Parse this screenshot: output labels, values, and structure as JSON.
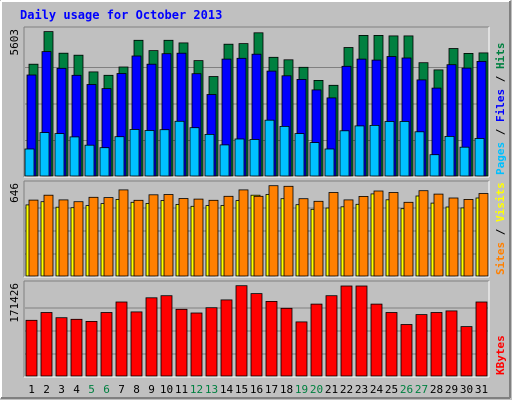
{
  "chart_data": {
    "type": "bar",
    "title": "Daily usage for October 2013",
    "categories": [
      "1",
      "2",
      "3",
      "4",
      "5",
      "6",
      "7",
      "8",
      "9",
      "10",
      "11",
      "12",
      "13",
      "14",
      "15",
      "16",
      "17",
      "18",
      "19",
      "20",
      "21",
      "22",
      "23",
      "24",
      "25",
      "26",
      "27",
      "28",
      "29",
      "30",
      "31"
    ],
    "weekend_days": [
      5,
      6,
      12,
      13,
      19,
      20,
      26,
      27
    ],
    "grid": true,
    "panels": [
      {
        "name": "hits-files-pages",
        "max_label": "5603",
        "ymax": 5603,
        "ylabel_parts": [
          {
            "text": "Pages",
            "color": "#00c0ff"
          },
          {
            "text": " / ",
            "color": "#000000"
          },
          {
            "text": "Files",
            "color": "#0000ff"
          },
          {
            "text": " / ",
            "color": "#000000"
          },
          {
            "text": "Hits",
            "color": "#008040"
          }
        ],
        "series": [
          {
            "name": "Hits",
            "color": "#008040",
            "values": [
              4350,
              5620,
              4780,
              4700,
              4050,
              3920,
              4240,
              5280,
              4880,
              5280,
              5180,
              4490,
              3870,
              5130,
              5150,
              5570,
              4620,
              4520,
              4230,
              3720,
              3530,
              5000,
              5470,
              5470,
              5450,
              5450,
              4410,
              4130,
              4960,
              4770,
              4790
            ]
          },
          {
            "name": "Files",
            "color": "#0000ff",
            "values": [
              3930,
              4840,
              4190,
              3920,
              3560,
              3400,
              3990,
              4670,
              4350,
              4760,
              4780,
              3980,
              3170,
              4550,
              4580,
              4740,
              4080,
              3900,
              3760,
              3350,
              3040,
              4270,
              4550,
              4510,
              4650,
              4590,
              3740,
              3420,
              4330,
              4200,
              4460
            ]
          },
          {
            "name": "Pages",
            "color": "#00c0ff",
            "values": [
              1050,
              1690,
              1650,
              1520,
              1200,
              1100,
              1530,
              1810,
              1770,
              1800,
              2130,
              1880,
              1620,
              1210,
              1440,
              1420,
              2170,
              1930,
              1650,
              1300,
              1050,
              1760,
              1950,
              1970,
              2120,
              2120,
              1720,
              830,
              1540,
              1120,
              1460
            ]
          }
        ]
      },
      {
        "name": "visits-sites",
        "max_label": "646",
        "ymax": 646,
        "ylabel_parts": [
          {
            "text": "Sites",
            "color": "#ff8000"
          },
          {
            "text": " / ",
            "color": "#000000"
          },
          {
            "text": "Visits",
            "color": "#ffff00"
          }
        ],
        "series": [
          {
            "name": "Visits",
            "color": "#ffff00",
            "values": [
              510,
              533,
              494,
              490,
              505,
              520,
              550,
              529,
              521,
              542,
              514,
              500,
              505,
              506,
              541,
              580,
              585,
              555,
              512,
              479,
              488,
              497,
              515,
              589,
              547,
              483,
              574,
              523,
              495,
              489,
              560
            ]
          },
          {
            "name": "Sites",
            "color": "#ff8000",
            "values": [
              545,
              580,
              546,
              533,
              565,
              563,
              618,
              543,
              583,
              585,
              556,
              552,
              543,
              572,
              618,
              572,
              648,
              644,
              555,
              536,
              599,
              546,
              571,
              610,
              599,
              529,
              612,
              588,
              560,
              550,
              592
            ]
          }
        ]
      },
      {
        "name": "kbytes",
        "max_label": "171426",
        "ymax": 171426,
        "ylabel_parts": [
          {
            "text": "KBytes",
            "color": "#ff0000"
          }
        ],
        "series": [
          {
            "name": "KBytes",
            "color": "#ff0000",
            "values": [
              106000,
              121000,
              111000,
              108000,
              104000,
              121000,
              141000,
              122000,
              149000,
              153000,
              127000,
              120000,
              130000,
              145000,
              172000,
              157000,
              142000,
              129000,
              103000,
              137000,
              153000,
              171500,
              171400,
              137000,
              121000,
              98000,
              117000,
              121000,
              124000,
              94000,
              141000
            ]
          }
        ]
      }
    ]
  }
}
